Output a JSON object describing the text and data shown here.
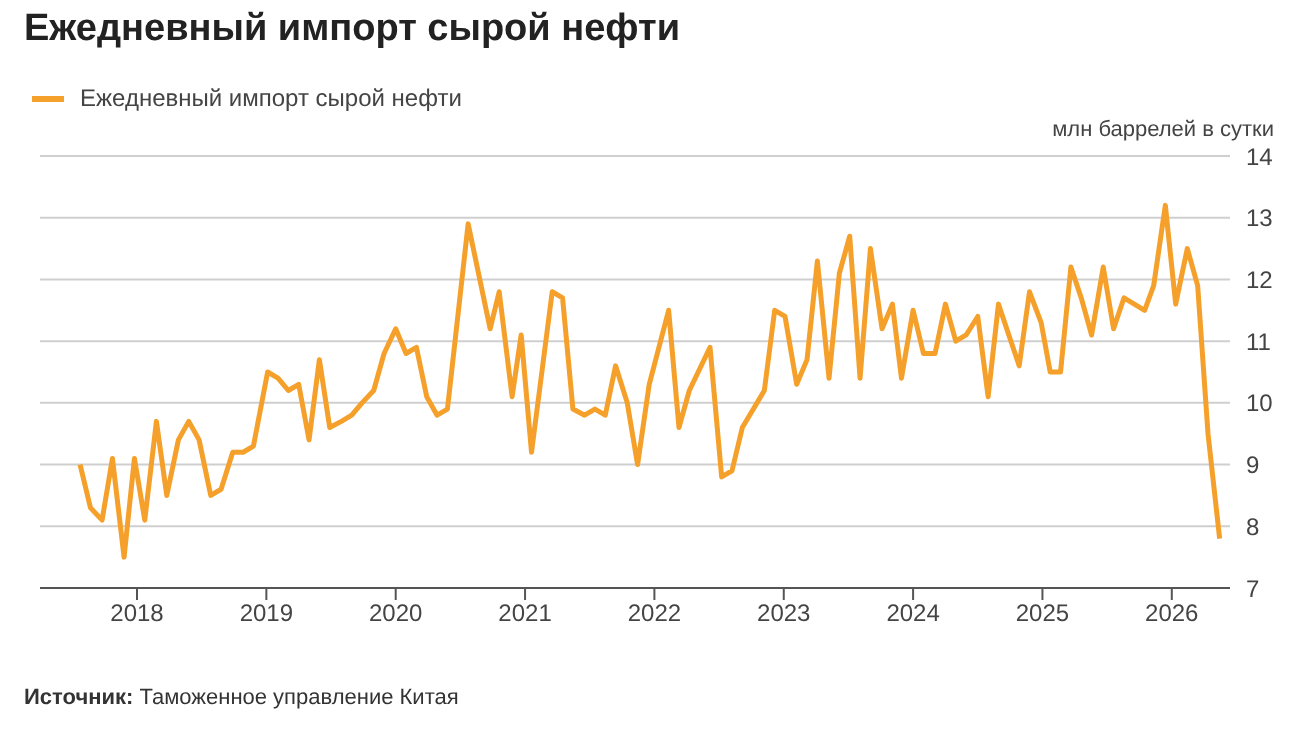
{
  "chart_data": {
    "type": "line",
    "title": "Ежедневный импорт сырой нефти",
    "ylabel": "млн баррелей в сутки",
    "annotations": [
      "Источник: Таможенное управление Китая"
    ],
    "legend": "top left",
    "grid": "y",
    "marker": "none",
    "line_style": "solid",
    "xlim": [
      2017.25,
      2026.45
    ],
    "xticks": [
      2018,
      2019,
      2020,
      2021,
      2022,
      2023,
      2024,
      2025,
      2026
    ],
    "ylim": [
      7,
      14
    ],
    "yticks": [
      7,
      8,
      9,
      10,
      11,
      12,
      13,
      14
    ],
    "x": [
      2017.56,
      2017.64,
      2017.73,
      2017.81,
      2017.9,
      2017.98,
      2018.06,
      2018.15,
      2018.23,
      2018.32,
      2018.4,
      2018.48,
      2018.57,
      2018.65,
      2018.74,
      2018.82,
      2018.9,
      2019.01,
      2019.09,
      2019.17,
      2019.25,
      2019.33,
      2019.41,
      2019.49,
      2019.58,
      2019.66,
      2019.74,
      2019.83,
      2019.91,
      2020.0,
      2020.08,
      2020.16,
      2020.24,
      2020.32,
      2020.4,
      2020.56,
      2020.73,
      2020.8,
      2020.9,
      2020.97,
      2021.05,
      2021.21,
      2021.29,
      2021.37,
      2021.46,
      2021.54,
      2021.62,
      2021.7,
      2021.79,
      2021.87,
      2021.96,
      2022.11,
      2022.19,
      2022.27,
      2022.43,
      2022.52,
      2022.6,
      2022.68,
      2022.85,
      2022.93,
      2023.01,
      2023.1,
      2023.18,
      2023.26,
      2023.35,
      2023.43,
      2023.51,
      2023.59,
      2023.67,
      2023.76,
      2023.84,
      2023.91,
      2024.0,
      2024.08,
      2024.17,
      2024.25,
      2024.33,
      2024.41,
      2024.5,
      2024.58,
      2024.66,
      2024.74,
      2024.82,
      2024.9,
      2024.99,
      2025.06,
      2025.14,
      2025.22,
      2025.3,
      2025.38,
      2025.47,
      2025.55,
      2025.63,
      2025.71,
      2025.79,
      2025.86,
      2025.95,
      2026.03,
      2026.12,
      2026.2,
      2026.28,
      2026.37
    ],
    "series": [
      {
        "name": "Ежедневный импорт сырой нефти",
        "color": "#f5a02a",
        "values": [
          9.0,
          8.3,
          8.1,
          9.1,
          7.5,
          9.1,
          8.1,
          9.7,
          8.5,
          9.4,
          9.7,
          9.4,
          8.5,
          8.6,
          9.2,
          9.2,
          9.3,
          10.5,
          10.4,
          10.2,
          10.3,
          9.4,
          10.7,
          9.6,
          9.7,
          9.8,
          10.0,
          10.2,
          10.8,
          11.2,
          10.8,
          10.9,
          10.1,
          9.8,
          9.9,
          12.9,
          11.2,
          11.8,
          10.1,
          11.1,
          9.2,
          11.8,
          11.7,
          9.9,
          9.8,
          9.9,
          9.8,
          10.6,
          10.0,
          9.0,
          10.3,
          11.5,
          9.6,
          10.2,
          10.9,
          8.8,
          8.9,
          9.6,
          10.2,
          11.5,
          11.4,
          10.3,
          10.7,
          12.3,
          10.4,
          12.1,
          12.7,
          10.4,
          12.5,
          11.2,
          11.6,
          10.4,
          11.5,
          10.8,
          10.8,
          11.6,
          11.0,
          11.1,
          11.4,
          10.1,
          11.6,
          11.1,
          10.6,
          11.8,
          11.3,
          10.5,
          10.5,
          12.2,
          11.7,
          11.1,
          12.2,
          11.2,
          11.7,
          11.6,
          11.5,
          11.9,
          13.2,
          11.6,
          12.5,
          11.9,
          9.5,
          7.8
        ]
      }
    ]
  }
}
